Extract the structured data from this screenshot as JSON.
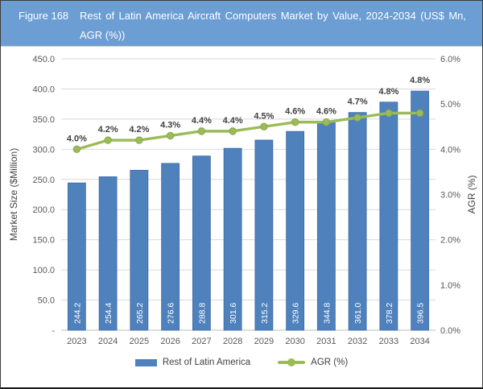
{
  "header": {
    "figure_label": "Figure 168",
    "title_line1": "Rest of Latin America Aircraft Computers Market by Value, 2024-2034 (US$ Mn,",
    "title_line2": "AGR (%))"
  },
  "colors": {
    "header_bg": "#6C9DD3",
    "header_text": "#FFFFFF",
    "bar": "#4F81BD",
    "bar_border": "#3E6BA5",
    "line": "#9BBB59",
    "line_border": "#89A84B",
    "grid": "#D9D9D9",
    "baseline": "#BFBFBF",
    "axis_text": "#595959",
    "data_label": "#3F3F3F",
    "bar_label": "#FFFFFF"
  },
  "chart_data": {
    "type": "bar+line",
    "title": "Figure 168 Rest of Latin America Aircraft Computers Market by Value, 2024-2034 (US$ Mn, AGR (%))",
    "categories": [
      "2023",
      "2024",
      "2025",
      "2026",
      "2027",
      "2028",
      "2029",
      "2030",
      "2031",
      "2032",
      "2033",
      "2034"
    ],
    "series": [
      {
        "name": "Rest of Latin America",
        "type": "bar",
        "axis": "left",
        "values": [
          244.2,
          254.4,
          265.2,
          276.6,
          288.8,
          301.6,
          315.2,
          329.6,
          344.8,
          361.0,
          378.2,
          396.5
        ]
      },
      {
        "name": "AGR (%)",
        "type": "line",
        "axis": "right",
        "values": [
          4.0,
          4.2,
          4.2,
          4.3,
          4.4,
          4.4,
          4.5,
          4.6,
          4.6,
          4.7,
          4.8,
          4.8
        ],
        "labels": [
          "4.0%",
          "4.2%",
          "4.2%",
          "4.3%",
          "4.4%",
          "4.4%",
          "4.5%",
          "4.6%",
          "4.6%",
          "4.7%",
          "4.8%",
          "4.8%"
        ]
      }
    ],
    "left_axis": {
      "title": "Market Size ($Million)",
      "ticks": [
        "450.0",
        "400.0",
        "350.0",
        "300.0",
        "250.0",
        "200.0",
        "150.0",
        "100.0",
        "50.0",
        "-"
      ],
      "min": 0,
      "max": 450
    },
    "right_axis": {
      "title": "AGR (%)",
      "ticks": [
        "6.0%",
        "5.0%",
        "4.0%",
        "3.0%",
        "2.0%",
        "1.0%",
        "0.0%"
      ],
      "min": 0,
      "max": 6
    },
    "grid": "horizontal",
    "legend": {
      "position": "bottom",
      "items": [
        {
          "label": "Rest of Latin America",
          "swatch": "bar"
        },
        {
          "label": "AGR (%)",
          "swatch": "line"
        }
      ]
    }
  }
}
